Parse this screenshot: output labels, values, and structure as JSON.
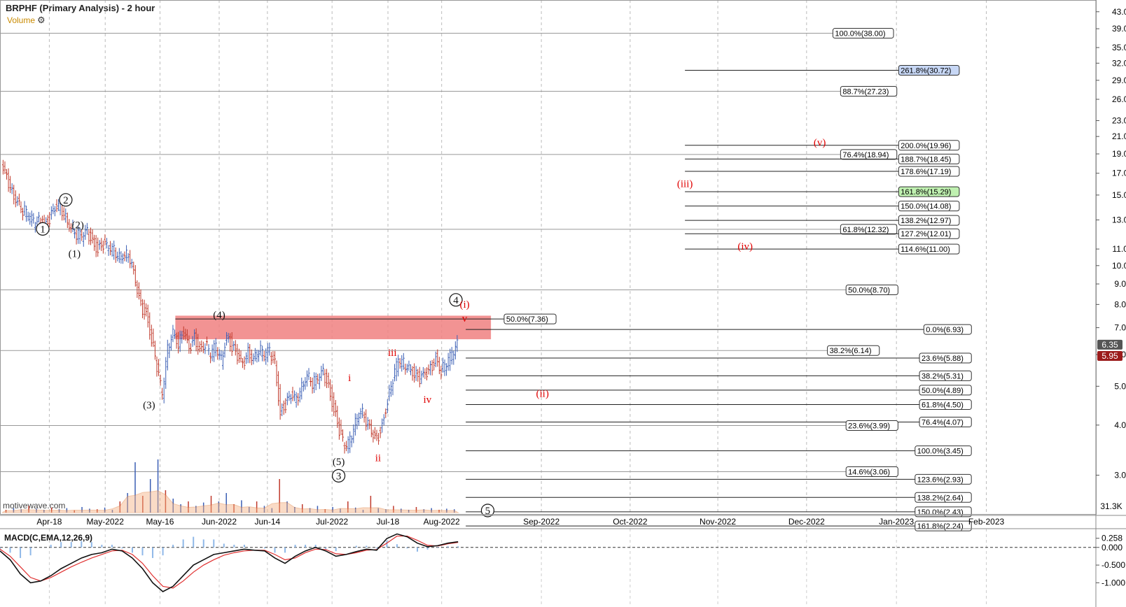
{
  "header": {
    "title": "BRPHF (Primary Analysis) - 2 hour",
    "volume_label": "Volume",
    "watermark": "motivewave.com",
    "macd_label": "MACD(C,EMA,12,26,9)"
  },
  "colors": {
    "bull": "#3b5fb5",
    "bear": "#c0392b",
    "zone": "#f08080",
    "wave_red": "#e00000",
    "price_now": "#9b1c1c",
    "fib_blue": "#c7d7f5",
    "fib_green": "#bff0b0"
  },
  "chart_data": {
    "type": "candlestick",
    "y_scale": "log",
    "ylim": [
      2.4,
      46
    ],
    "x_ticks": [
      "Apr-18",
      "May-2022",
      "May-16",
      "Jun-2022",
      "Jun-14",
      "Jul-2022",
      "Jul-18",
      "Aug-2022",
      "Sep-2022",
      "Oct-2022",
      "Nov-2022",
      "Dec-2022",
      "Jan-2023",
      "Feb-2023"
    ],
    "y_ticks": [
      "43.00",
      "39.00",
      "35.00",
      "32.00",
      "29.00",
      "26.00",
      "23.00",
      "21.00",
      "19.00",
      "17.00",
      "15.00",
      "13.00",
      "11.00",
      "10.00",
      "9.00",
      "8.00",
      "7.00",
      "6.00",
      "5.00",
      "4.00",
      "3.00"
    ],
    "price_tags": [
      {
        "label": "6.35",
        "kind": "last"
      },
      {
        "label": "5.95",
        "kind": "bear"
      }
    ],
    "price_path": [
      17.5,
      16.5,
      15.2,
      14.6,
      13.8,
      13.4,
      12.8,
      13.0,
      12.5,
      13.1,
      13.8,
      14.0,
      13.2,
      12.6,
      12.0,
      11.8,
      12.1,
      11.5,
      11.0,
      11.3,
      11.0,
      10.9,
      10.6,
      10.8,
      10.4,
      9.0,
      7.9,
      7.6,
      6.6,
      5.6,
      4.7,
      6.2,
      6.9,
      6.4,
      6.8,
      6.1,
      6.6,
      6.2,
      6.4,
      6.0,
      6.3,
      5.8,
      6.7,
      6.3,
      5.9,
      5.6,
      6.1,
      5.9,
      6.2,
      6.0,
      6.1,
      5.7,
      4.3,
      4.5,
      4.7,
      4.6,
      5.0,
      5.4,
      5.1,
      5.2,
      5.4,
      5.0,
      4.4,
      3.9,
      3.5,
      3.65,
      4.1,
      4.4,
      4.1,
      3.8,
      3.65,
      4.0,
      4.6,
      5.2,
      5.8,
      5.7,
      5.6,
      5.4,
      5.2,
      5.3,
      5.5,
      5.9,
      5.5,
      5.7,
      6.0,
      6.35
    ],
    "volume_level": [
      0.05,
      0.08,
      0.06,
      0.12,
      0.07,
      0.05,
      0.09,
      0.06,
      0.08,
      0.04,
      0.1,
      0.07,
      0.06,
      0.09,
      0.05,
      0.2,
      0.35,
      0.9,
      0.3,
      0.6,
      0.95,
      0.4,
      0.25,
      0.15,
      0.2,
      0.12,
      0.18,
      0.3,
      0.2,
      0.35,
      0.15,
      0.22,
      0.1,
      0.2,
      0.12,
      0.08,
      0.6,
      0.2,
      0.1,
      0.15,
      0.08,
      0.12,
      0.06,
      0.1,
      0.07,
      0.2,
      0.09,
      0.05,
      0.3,
      0.08,
      0.06,
      0.12,
      0.07,
      0.05,
      0.1,
      0.06,
      0.08,
      0.05,
      0.07,
      0.06
    ],
    "volume_max_label": "31.3K",
    "fib_levels": [
      {
        "label": "100.0%(38.00)",
        "v": 38.0,
        "x0": 0,
        "tag": 0.76
      },
      {
        "label": "261.8%(30.72)",
        "v": 30.72,
        "x0": 0.625,
        "tag": 0.82,
        "style": "blue"
      },
      {
        "label": "88.7%(27.23)",
        "v": 27.23,
        "x0": 0,
        "tag": 0.767
      },
      {
        "label": "200.0%(19.96)",
        "v": 19.96,
        "x0": 0.625,
        "tag": 0.82
      },
      {
        "label": "76.4%(18.94)",
        "v": 18.94,
        "x0": 0,
        "tag": 0.767
      },
      {
        "label": "188.7%(18.45)",
        "v": 18.45,
        "x0": 0.625,
        "tag": 0.82
      },
      {
        "label": "178.6%(17.19)",
        "v": 17.19,
        "x0": 0.625,
        "tag": 0.82
      },
      {
        "label": "161.8%(15.29)",
        "v": 15.29,
        "x0": 0.625,
        "tag": 0.82,
        "style": "green"
      },
      {
        "label": "150.0%(14.08)",
        "v": 14.08,
        "x0": 0.625,
        "tag": 0.82
      },
      {
        "label": "138.2%(12.97)",
        "v": 12.97,
        "x0": 0.625,
        "tag": 0.82
      },
      {
        "label": "61.8%(12.32)",
        "v": 12.32,
        "x0": 0,
        "tag": 0.767
      },
      {
        "label": "127.2%(12.01)",
        "v": 12.01,
        "x0": 0.625,
        "tag": 0.82
      },
      {
        "label": "114.6%(11.00)",
        "v": 11.0,
        "x0": 0.625,
        "tag": 0.82
      },
      {
        "label": "50.0%(8.70)",
        "v": 8.7,
        "x0": 0,
        "tag": 0.772
      },
      {
        "label": "50.0%(7.36)",
        "v": 7.36,
        "x0": 0.16,
        "x1": 0.46,
        "tag": 0.46
      },
      {
        "label": "0.0%(6.93)",
        "v": 6.93,
        "x0": 0.425,
        "tag": 0.843
      },
      {
        "label": "38.2%(6.14)",
        "v": 6.14,
        "x0": 0,
        "tag": 0.755
      },
      {
        "label": "23.6%(5.88)",
        "v": 5.88,
        "x0": 0.425,
        "tag": 0.839
      },
      {
        "label": "38.2%(5.31)",
        "v": 5.31,
        "x0": 0.425,
        "tag": 0.839
      },
      {
        "label": "50.0%(4.89)",
        "v": 4.89,
        "x0": 0.425,
        "tag": 0.839
      },
      {
        "label": "61.8%(4.50)",
        "v": 4.5,
        "x0": 0.425,
        "tag": 0.839
      },
      {
        "label": "76.4%(4.07)",
        "v": 4.07,
        "x0": 0.425,
        "tag": 0.839
      },
      {
        "label": "23.6%(3.99)",
        "v": 3.99,
        "x0": 0,
        "tag": 0.772
      },
      {
        "label": "100.0%(3.45)",
        "v": 3.45,
        "x0": 0.425,
        "tag": 0.835
      },
      {
        "label": "14.6%(3.06)",
        "v": 3.06,
        "x0": 0,
        "tag": 0.772
      },
      {
        "label": "123.6%(2.93)",
        "v": 2.93,
        "x0": 0.425,
        "tag": 0.835
      },
      {
        "label": "138.2%(2.64)",
        "v": 2.64,
        "x0": 0.425,
        "tag": 0.835
      },
      {
        "label": "150.0%(2.43)",
        "v": 2.43,
        "x0": 0.425,
        "tag": 0.835
      },
      {
        "label": "161.8%(2.24)",
        "v": 2.24,
        "x0": 0.425,
        "tag": 0.835
      }
    ],
    "resistance_zone": {
      "low": 6.55,
      "high": 7.5,
      "x0": 0.16,
      "x1": 0.448
    },
    "wave_labels": [
      {
        "t": "1",
        "x": 0.039,
        "v": 12.1,
        "circle": true
      },
      {
        "t": "2",
        "x": 0.06,
        "v": 14.3,
        "circle": true
      },
      {
        "t": "(2)",
        "x": 0.071,
        "v": 12.4
      },
      {
        "t": "(1)",
        "x": 0.068,
        "v": 10.5
      },
      {
        "t": "(3)",
        "x": 0.136,
        "v": 4.4
      },
      {
        "t": "(4)",
        "x": 0.2,
        "v": 7.4
      },
      {
        "t": "(5)",
        "x": 0.309,
        "v": 3.18
      },
      {
        "t": "3",
        "x": 0.309,
        "v": 2.93,
        "circle": true
      },
      {
        "t": "4",
        "x": 0.416,
        "v": 8.05,
        "circle": true
      },
      {
        "t": "5",
        "x": 0.445,
        "v": 2.4,
        "circle": true
      },
      {
        "t": "i",
        "x": 0.319,
        "v": 5.15,
        "red": true
      },
      {
        "t": "ii",
        "x": 0.345,
        "v": 3.25,
        "red": true
      },
      {
        "t": "iii",
        "x": 0.358,
        "v": 5.95,
        "red": true
      },
      {
        "t": "iv",
        "x": 0.39,
        "v": 4.55,
        "red": true
      },
      {
        "t": "(i)",
        "x": 0.424,
        "v": 7.85,
        "red": true
      },
      {
        "t": "v",
        "x": 0.424,
        "v": 7.25,
        "red": true
      },
      {
        "t": "(ii)",
        "x": 0.495,
        "v": 4.7,
        "red": true
      },
      {
        "t": "(iii)",
        "x": 0.625,
        "v": 15.7,
        "red": true
      },
      {
        "t": "(iv)",
        "x": 0.68,
        "v": 10.95,
        "red": true
      },
      {
        "t": "(v)",
        "x": 0.748,
        "v": 19.9,
        "red": true
      }
    ],
    "macd_ticks": [
      "0.258",
      "0.000",
      "-0.500",
      "-1.000"
    ],
    "macd_range": [
      -1.25,
      0.45
    ],
    "macd_line": [
      -0.1,
      -0.35,
      -0.75,
      -1.0,
      -0.95,
      -0.8,
      -0.6,
      -0.45,
      -0.3,
      -0.2,
      -0.15,
      -0.05,
      -0.1,
      -0.3,
      -0.6,
      -1.0,
      -1.25,
      -1.1,
      -0.8,
      -0.5,
      -0.35,
      -0.2,
      -0.15,
      -0.1,
      -0.05,
      -0.08,
      -0.1,
      -0.3,
      -0.45,
      -0.25,
      -0.1,
      0.0,
      -0.1,
      -0.25,
      -0.2,
      -0.12,
      -0.05,
      -0.08,
      0.25,
      0.38,
      0.3,
      0.12,
      0.02,
      0.05,
      0.12,
      0.16
    ],
    "signal_line": [
      -0.05,
      -0.25,
      -0.55,
      -0.85,
      -0.95,
      -0.85,
      -0.7,
      -0.55,
      -0.42,
      -0.3,
      -0.2,
      -0.1,
      -0.08,
      -0.2,
      -0.45,
      -0.8,
      -1.1,
      -1.15,
      -0.95,
      -0.7,
      -0.5,
      -0.35,
      -0.22,
      -0.15,
      -0.1,
      -0.08,
      -0.08,
      -0.2,
      -0.35,
      -0.3,
      -0.15,
      -0.05,
      -0.06,
      -0.18,
      -0.2,
      -0.15,
      -0.08,
      -0.06,
      0.12,
      0.32,
      0.32,
      0.2,
      0.06,
      0.04,
      0.1,
      0.14
    ]
  }
}
